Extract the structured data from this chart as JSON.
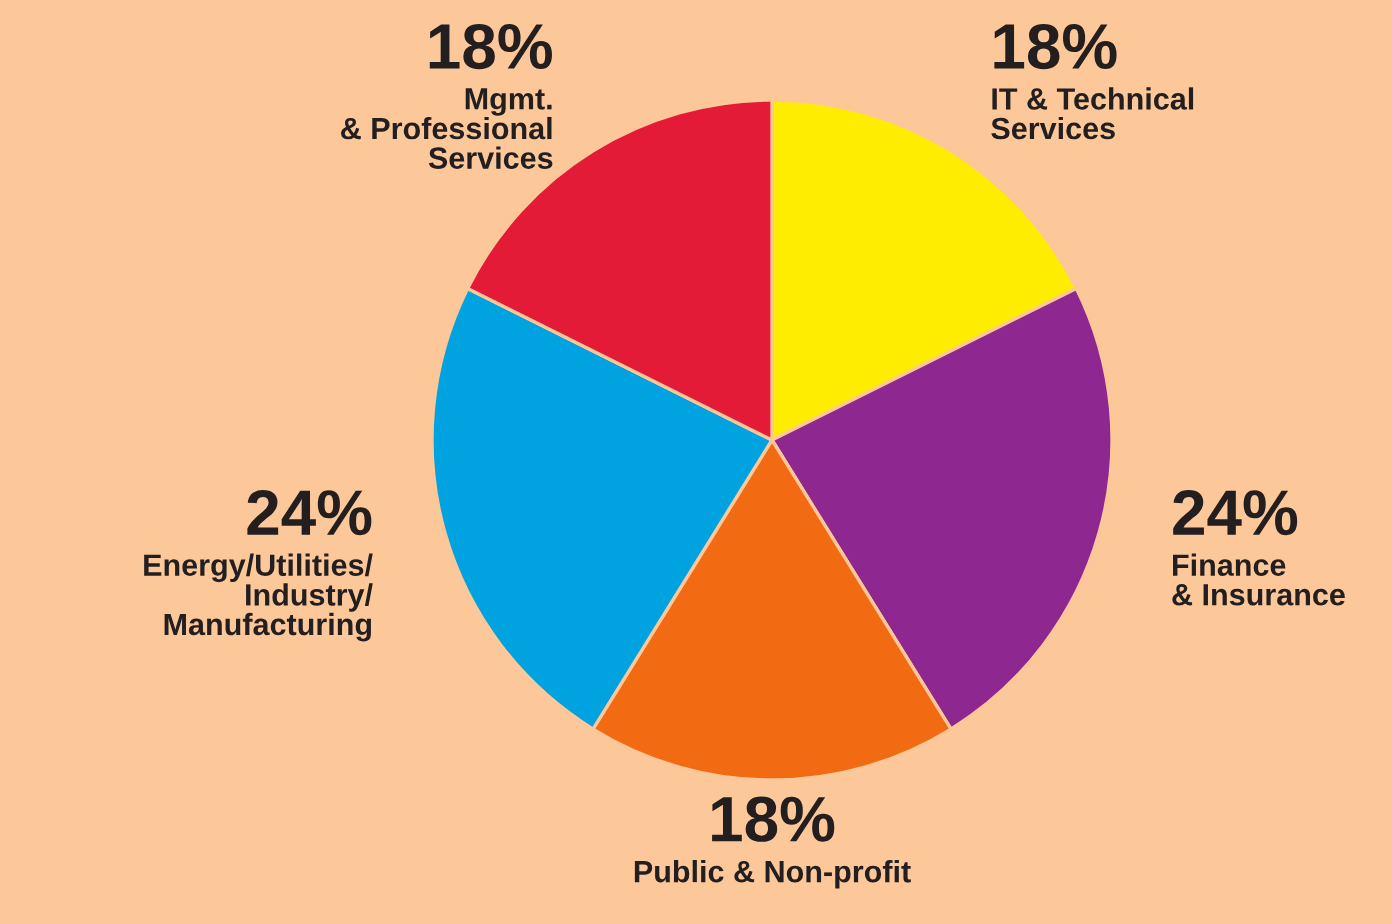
{
  "chart_data": {
    "type": "pie",
    "categories": [
      "IT & Technical\nServices",
      "Finance\n& Insurance",
      "Public & Non-profit",
      "Energy/Utilities/\nIndustry/\nManufacturing",
      "Mgmt.\n& Professional\nServices"
    ],
    "values": [
      18,
      24,
      18,
      24,
      18
    ],
    "value_labels": [
      "18%",
      "24%",
      "18%",
      "24%",
      "18%"
    ],
    "colors": [
      "#ffed00",
      "#8e278f",
      "#f26a12",
      "#00a3df",
      "#e31b37"
    ]
  }
}
